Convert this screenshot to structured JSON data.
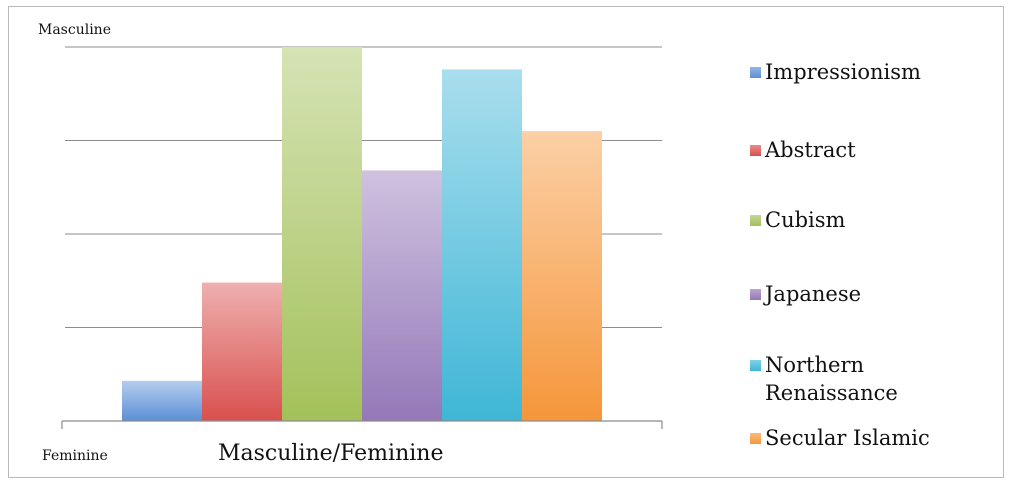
{
  "chart_data": {
    "type": "bar",
    "title": "",
    "xlabel": "Masculine/Feminine",
    "ylabel_top": "Masculine",
    "ylabel_bottom": "Feminine",
    "ylim": [
      0,
      4
    ],
    "grid": true,
    "legend_position": "right",
    "categories": [
      "Masculine/Feminine"
    ],
    "series": [
      {
        "name": "Impressionism",
        "values": [
          0.43
        ],
        "color": "#5b8fd6"
      },
      {
        "name": "Abstract",
        "values": [
          1.48
        ],
        "color": "#d9504e"
      },
      {
        "name": "Cubism",
        "values": [
          4.0
        ],
        "color": "#a3c15a"
      },
      {
        "name": "Japanese",
        "values": [
          2.68
        ],
        "color": "#9478b8"
      },
      {
        "name": "Northern Renaissance",
        "values": [
          3.76
        ],
        "color": "#3fb6d6"
      },
      {
        "name": "Secular Islamic",
        "values": [
          3.1
        ],
        "color": "#f5963a"
      }
    ]
  }
}
